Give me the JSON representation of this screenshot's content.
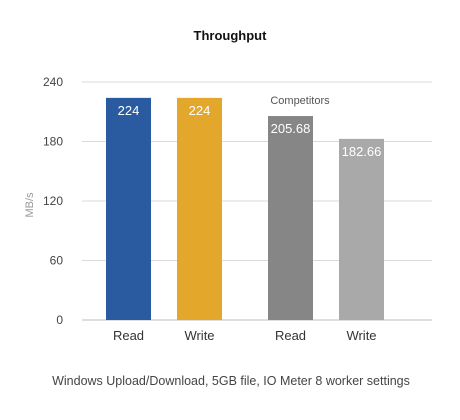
{
  "chart_data": {
    "type": "bar",
    "title": "Throughput",
    "ylabel": "MB/s",
    "xlabel": "",
    "ylim": [
      0,
      240
    ],
    "yticks": [
      0,
      60,
      120,
      180,
      240
    ],
    "grid": true,
    "bars": [
      {
        "label": "Read",
        "value": 224,
        "value_label": "224",
        "color": "#2a5aa0"
      },
      {
        "label": "Write",
        "value": 224,
        "value_label": "224",
        "color": "#e3a82b"
      },
      {
        "label": "Read",
        "value": 205.68,
        "value_label": "205.68",
        "color": "#868686"
      },
      {
        "label": "Write",
        "value": 182.66,
        "value_label": "182.66",
        "color": "#a9a9a9"
      }
    ],
    "group_annotation": "Competitors",
    "caption": "Windows Upload/Download, 5GB file, IO Meter 8 worker settings"
  }
}
